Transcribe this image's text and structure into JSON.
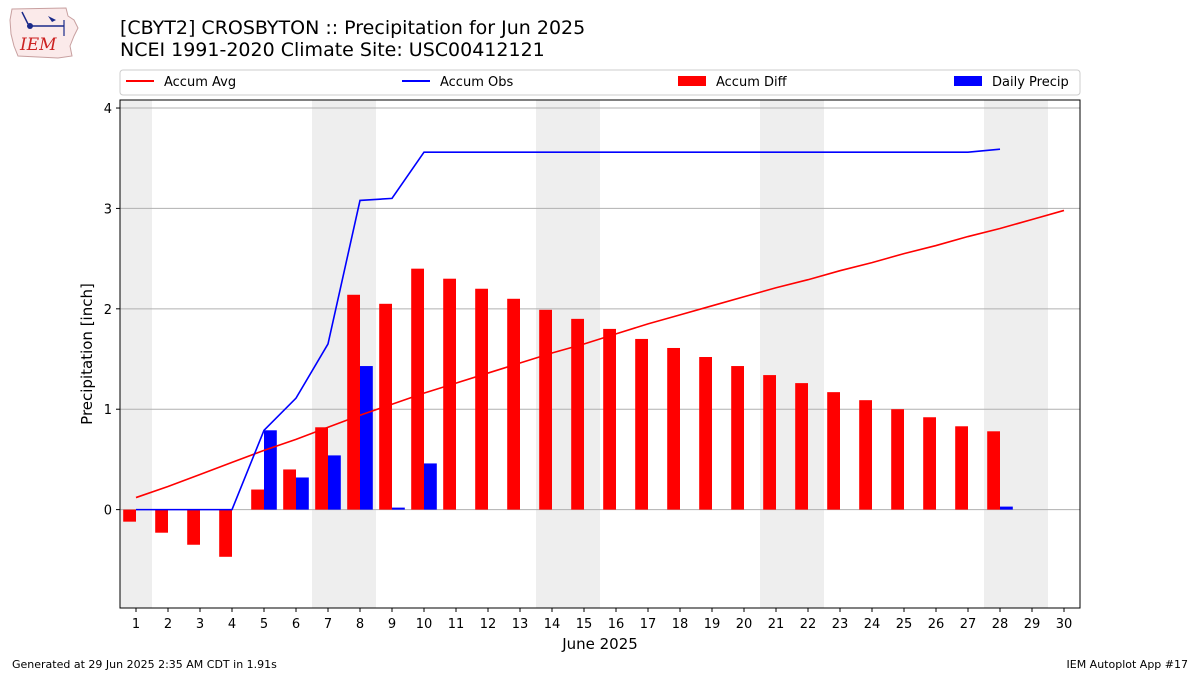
{
  "header": {
    "title_line1": "[CBYT2] CROSBYTON :: Precipitation for Jun 2025",
    "title_line2": "NCEI 1991-2020 Climate Site: USC00412121",
    "logo_text": "IEM"
  },
  "footer": {
    "generated": "Generated at 29 Jun 2025 2:35 AM CDT in 1.91s",
    "app": "IEM Autoplot App #17"
  },
  "colors": {
    "avg": "#ff0000",
    "obs": "#0000ff",
    "diff": "#ff0000",
    "daily": "#0000ff",
    "weekend_shade": "#eeeeee",
    "grid": "#b0b0b0"
  },
  "chart_data": {
    "type": "bar",
    "xlabel": "June 2025",
    "ylabel": "Precipitation [inch]",
    "xlim": [
      0.5,
      30.5
    ],
    "ylim": [
      -0.98,
      4.08
    ],
    "yticks": [
      0,
      1,
      2,
      3,
      4
    ],
    "grid": "y",
    "legend_placement": "top",
    "weekend_shaded_days": [
      1,
      7,
      8,
      14,
      15,
      21,
      22,
      28,
      29
    ],
    "x": [
      1,
      2,
      3,
      4,
      5,
      6,
      7,
      8,
      9,
      10,
      11,
      12,
      13,
      14,
      15,
      16,
      17,
      18,
      19,
      20,
      21,
      22,
      23,
      24,
      25,
      26,
      27,
      28,
      29,
      30
    ],
    "series": [
      {
        "name": "Accum Avg",
        "kind": "line",
        "values": [
          0.12,
          0.23,
          0.35,
          0.47,
          0.59,
          0.7,
          0.82,
          0.94,
          1.05,
          1.16,
          1.26,
          1.36,
          1.46,
          1.56,
          1.65,
          1.75,
          1.85,
          1.94,
          2.03,
          2.12,
          2.21,
          2.29,
          2.38,
          2.46,
          2.55,
          2.63,
          2.72,
          2.8,
          2.89,
          2.98
        ]
      },
      {
        "name": "Accum Obs",
        "kind": "line",
        "values": [
          0.0,
          0.0,
          0.0,
          0.0,
          0.79,
          1.11,
          1.65,
          3.08,
          3.1,
          3.56,
          3.56,
          3.56,
          3.56,
          3.56,
          3.56,
          3.56,
          3.56,
          3.56,
          3.56,
          3.56,
          3.56,
          3.56,
          3.56,
          3.56,
          3.56,
          3.56,
          3.56,
          3.59,
          null,
          null
        ]
      },
      {
        "name": "Accum Diff",
        "kind": "bar",
        "values": [
          -0.12,
          -0.23,
          -0.35,
          -0.47,
          0.2,
          0.4,
          0.82,
          2.14,
          2.05,
          2.4,
          2.3,
          2.2,
          2.1,
          1.99,
          1.9,
          1.8,
          1.7,
          1.61,
          1.52,
          1.43,
          1.34,
          1.26,
          1.17,
          1.09,
          1.0,
          0.92,
          0.83,
          0.78,
          null,
          null
        ]
      },
      {
        "name": "Daily Precip",
        "kind": "bar",
        "values": [
          0.0,
          0.0,
          0.0,
          0.0,
          0.79,
          0.32,
          0.54,
          1.43,
          0.02,
          0.46,
          0.0,
          0.0,
          0.0,
          0.0,
          0.0,
          0.0,
          0.0,
          0.0,
          0.0,
          0.0,
          0.0,
          0.0,
          0.0,
          0.0,
          0.0,
          0.0,
          0.0,
          0.03,
          null,
          null
        ]
      }
    ]
  }
}
